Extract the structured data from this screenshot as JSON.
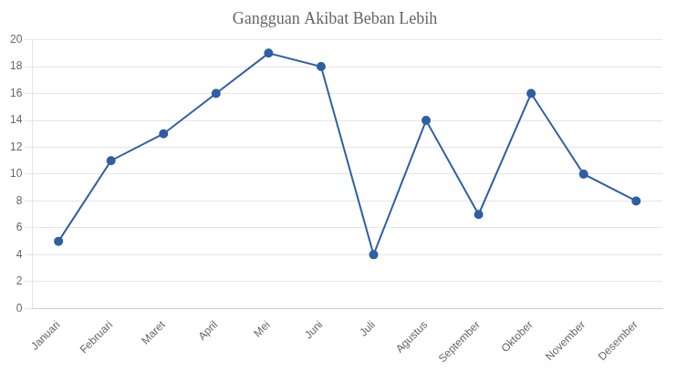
{
  "chart_data": {
    "type": "line",
    "title": "Gangguan Akibat Beban Lebih",
    "categories": [
      "Januari",
      "Februari",
      "Maret",
      "April",
      "Mei",
      "Juni",
      "Juli",
      "Agustus",
      "September",
      "Oktober",
      "November",
      "Desember"
    ],
    "values": [
      5,
      11,
      13,
      16,
      19,
      18,
      4,
      14,
      7,
      16,
      10,
      8
    ],
    "color": "#2E5FA3",
    "marker": "o",
    "ylim": [
      0,
      20
    ],
    "yticks": [
      0,
      2,
      4,
      6,
      8,
      10,
      12,
      14,
      16,
      18,
      20
    ],
    "grid": true
  }
}
